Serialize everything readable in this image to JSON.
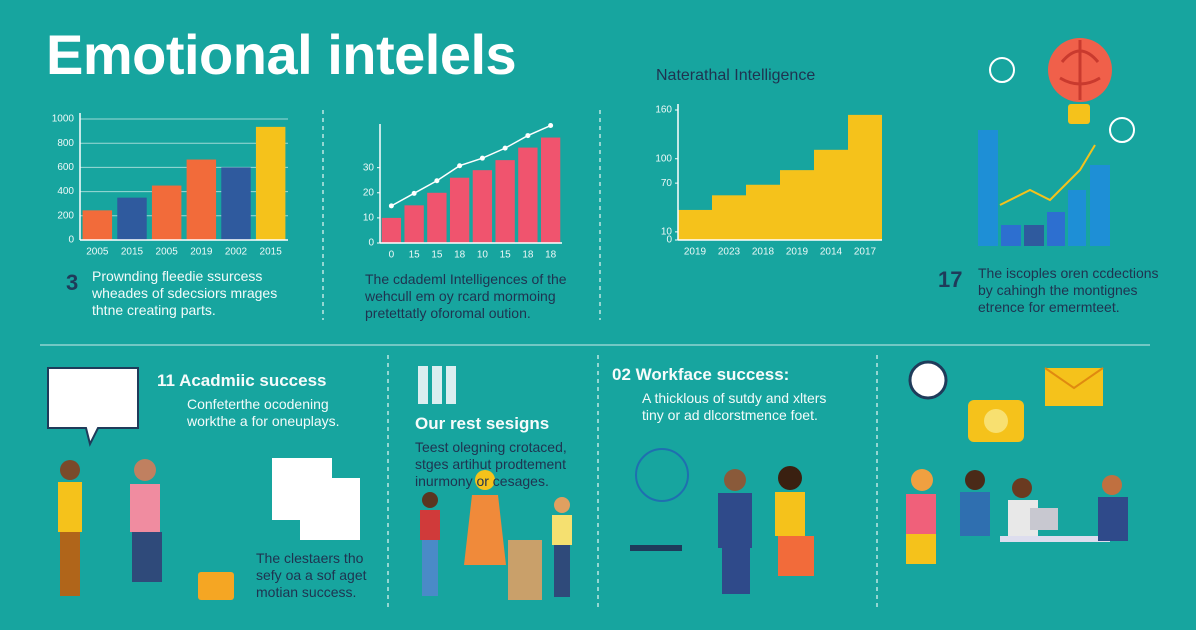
{
  "title": "Emotional intelels",
  "chart_data": [
    {
      "type": "bar",
      "categories": [
        "2005",
        "2015",
        "2005",
        "2019",
        "2002",
        "2015"
      ],
      "values": [
        245,
        350,
        450,
        665,
        600,
        935
      ],
      "colors": [
        "#f26b3a",
        "#2f5a9e",
        "#f26b3a",
        "#f26b3a",
        "#2f5a9e",
        "#f5c21b"
      ],
      "ylim": [
        0,
        1000
      ],
      "yticks": [
        0,
        200,
        400,
        600,
        800,
        1000
      ],
      "grid": true
    },
    {
      "type": "bar",
      "categories": [
        "0",
        "15",
        "15",
        "18",
        "10",
        "15",
        "18",
        "18"
      ],
      "values": [
        10,
        15,
        20,
        26,
        29,
        33,
        38,
        42
      ],
      "color": "#f0546e",
      "line": true,
      "ylim": [
        0,
        45
      ],
      "yticks": [
        0,
        10,
        20,
        30
      ],
      "grid": false
    },
    {
      "type": "bar",
      "title": "Naterathal Intelligence",
      "categories": [
        "2019",
        "2023",
        "2018",
        "2019",
        "2014",
        "2017"
      ],
      "values": [
        37,
        55,
        68,
        86,
        111,
        154
      ],
      "color": "#f5c21b",
      "ylim": [
        0,
        160
      ],
      "yticks": [
        0,
        10,
        70,
        100,
        160
      ],
      "grid": false
    }
  ],
  "panels": [
    {
      "number": "3",
      "lines": [
        "Prownding fleedie ssurcess",
        "wheades of sdecsiors mrages",
        "thtne creating parts."
      ]
    },
    {
      "lines": [
        "The cdademl Intelligences of the",
        "wehcull em oy rcard mormoing",
        "pretettatly oforomal oution."
      ]
    },
    {
      "number": "17",
      "lines": [
        "The iscoples oren ccdections",
        "by cahingh the montignes",
        "etrence for emermteet."
      ]
    },
    {
      "heading": "11 Acadmiic success",
      "lines": [
        "Confeterthe ocodening",
        "workthe a for oneuplays."
      ]
    },
    {
      "heading": "Our rest sesigns",
      "lines": [
        "Teest olegning crotaced,",
        "stges artihut prodtement",
        "inurmony or cesages."
      ]
    },
    {
      "heading": "02 Workface success:",
      "lines": [
        "A thicklous of sutdy and xlters",
        "tiny or ad dlcorstmence foet."
      ]
    },
    {
      "lines": [
        "The clestaers tho",
        "sefy oa a sof aget",
        "motian success."
      ]
    }
  ]
}
